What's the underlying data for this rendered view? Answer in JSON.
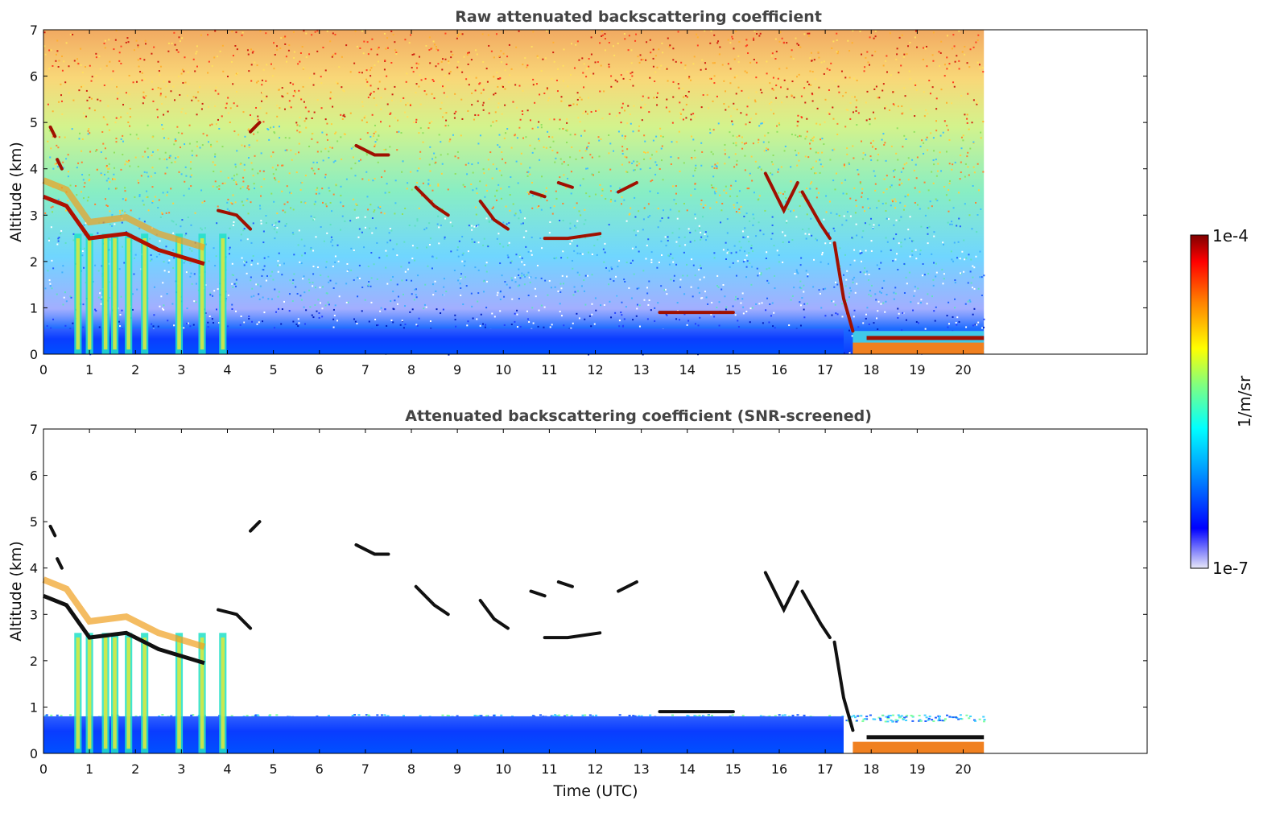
{
  "chart_data": [
    {
      "type": "heatmap",
      "title": "Raw attenuated backscattering coefficient",
      "xlabel": "",
      "ylabel": "Altitude (km)",
      "xlim": [
        0,
        24
      ],
      "ylim": [
        0,
        7
      ],
      "xticks": [
        "0",
        "1",
        "2",
        "3",
        "4",
        "5",
        "6",
        "7",
        "8",
        "9",
        "10",
        "11",
        "12",
        "13",
        "14",
        "15",
        "16",
        "17",
        "18",
        "19",
        "20"
      ],
      "yticks": [
        "0",
        "1",
        "2",
        "3",
        "4",
        "5",
        "6",
        "7"
      ],
      "data_end_time": 20.45,
      "grid": false,
      "features": {
        "surface_layer_top_km": 0.55,
        "evening_cloud_base_km": 0.35,
        "morning_cloud_base": [
          [
            0.0,
            3.4
          ],
          [
            0.5,
            3.2
          ],
          [
            1.0,
            2.5
          ],
          [
            1.8,
            2.6
          ],
          [
            2.5,
            2.25
          ],
          [
            3.5,
            1.95
          ]
        ],
        "cloud_segments": [
          [
            [
              0.15,
              4.9
            ],
            [
              0.25,
              4.7
            ]
          ],
          [
            [
              0.3,
              4.2
            ],
            [
              0.4,
              4.0
            ]
          ],
          [
            [
              3.8,
              3.1
            ],
            [
              4.2,
              3.0
            ],
            [
              4.5,
              2.7
            ]
          ],
          [
            [
              4.5,
              4.8
            ],
            [
              4.7,
              5.0
            ]
          ],
          [
            [
              6.8,
              4.5
            ],
            [
              7.2,
              4.3
            ],
            [
              7.5,
              4.3
            ]
          ],
          [
            [
              8.1,
              3.6
            ],
            [
              8.5,
              3.2
            ],
            [
              8.8,
              3.0
            ]
          ],
          [
            [
              9.5,
              3.3
            ],
            [
              9.8,
              2.9
            ],
            [
              10.1,
              2.7
            ]
          ],
          [
            [
              10.6,
              3.5
            ],
            [
              10.9,
              3.4
            ]
          ],
          [
            [
              10.9,
              2.5
            ],
            [
              11.4,
              2.5
            ],
            [
              12.1,
              2.6
            ]
          ],
          [
            [
              11.2,
              3.7
            ],
            [
              11.5,
              3.6
            ]
          ],
          [
            [
              12.5,
              3.5
            ],
            [
              12.9,
              3.7
            ]
          ],
          [
            [
              13.4,
              0.9
            ],
            [
              14.3,
              0.9
            ],
            [
              15.0,
              0.9
            ]
          ],
          [
            [
              15.7,
              3.9
            ],
            [
              16.1,
              3.1
            ],
            [
              16.4,
              3.7
            ]
          ],
          [
            [
              16.5,
              3.5
            ],
            [
              16.9,
              2.8
            ],
            [
              17.1,
              2.5
            ]
          ],
          [
            [
              17.2,
              2.4
            ],
            [
              17.4,
              1.2
            ],
            [
              17.6,
              0.5
            ]
          ]
        ]
      }
    },
    {
      "type": "heatmap",
      "title": "Attenuated backscattering coefficient (SNR-screened)",
      "xlabel": "Time (UTC)",
      "ylabel": "Altitude (km)",
      "xlim": [
        0,
        24
      ],
      "ylim": [
        0,
        7
      ],
      "xticks": [
        "0",
        "1",
        "2",
        "3",
        "4",
        "5",
        "6",
        "7",
        "8",
        "9",
        "10",
        "11",
        "12",
        "13",
        "14",
        "15",
        "16",
        "17",
        "18",
        "19",
        "20"
      ],
      "yticks": [
        "0",
        "1",
        "2",
        "3",
        "4",
        "5",
        "6",
        "7"
      ],
      "data_end_time": 20.45,
      "grid": false
    }
  ],
  "colorbar": {
    "label": "1/m/sr",
    "max_label": "1e-4",
    "min_label": "1e-7",
    "scale": "log",
    "range": [
      1e-07,
      0.0001
    ],
    "colormap": [
      "#e8e8f8",
      "#0000ff",
      "#00a0ff",
      "#00ffff",
      "#80ff80",
      "#ffff00",
      "#ff8000",
      "#ff0000",
      "#800000"
    ]
  }
}
